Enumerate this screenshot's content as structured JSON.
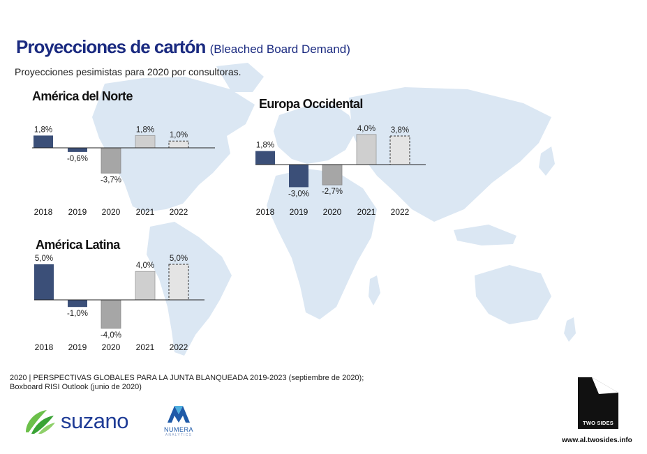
{
  "header": {
    "title": "Proyecciones de cartón",
    "title_sub": "(Bleached Board Demand)",
    "subtitle": "Proyecciones pesimistas para 2020 por consultoras."
  },
  "colors": {
    "title": "#1a2a80",
    "bar_2018_2019": "#3b4f78",
    "bar_2020": "#a6a6a6",
    "bar_2021": "#cfcfcf",
    "bar_2022": "#e4e4e4",
    "map": "#dbe7f3"
  },
  "chart_data": [
    {
      "type": "bar",
      "title": "América del Norte",
      "categories": [
        "2018",
        "2019",
        "2020",
        "2021",
        "2022"
      ],
      "values": [
        1.8,
        -0.6,
        -3.7,
        1.8,
        1.0
      ],
      "labels": [
        "1,8%",
        "-0,6%",
        "-3,7%",
        "1,8%",
        "1,0%"
      ],
      "projected": [
        false,
        false,
        false,
        false,
        true
      ],
      "xlabel": "",
      "ylabel": ""
    },
    {
      "type": "bar",
      "title": "Europa Occidental",
      "categories": [
        "2018",
        "2019",
        "2020",
        "2021",
        "2022"
      ],
      "values": [
        1.8,
        -3.0,
        -2.7,
        4.0,
        3.8
      ],
      "labels": [
        "1,8%",
        "-3,0%",
        "-2,7%",
        "4,0%",
        "3,8%"
      ],
      "projected": [
        false,
        false,
        false,
        false,
        true
      ],
      "xlabel": "",
      "ylabel": ""
    },
    {
      "type": "bar",
      "title": "América Latina",
      "categories": [
        "2018",
        "2019",
        "2020",
        "2021",
        "2022"
      ],
      "values": [
        5.0,
        -1.0,
        -4.0,
        4.0,
        5.0
      ],
      "labels": [
        "5,0%",
        "-1,0%",
        "-4,0%",
        "4,0%",
        "5,0%"
      ],
      "projected": [
        false,
        false,
        false,
        false,
        true
      ],
      "xlabel": "",
      "ylabel": ""
    }
  ],
  "footer": {
    "source_line1": "2020 | PERSPECTIVAS GLOBALES PARA LA JUNTA BLANQUEADA 2019-2023 (septiembre de 2020);",
    "source_line2": "Boxboard RISI Outlook (junio de 2020)",
    "suzano_logo": "suzano",
    "numera_logo": "NUMERA",
    "numera_sub": "ANALYTICS",
    "twosides_logo": "TWO SIDES",
    "url": "www.al.twosides.info"
  }
}
